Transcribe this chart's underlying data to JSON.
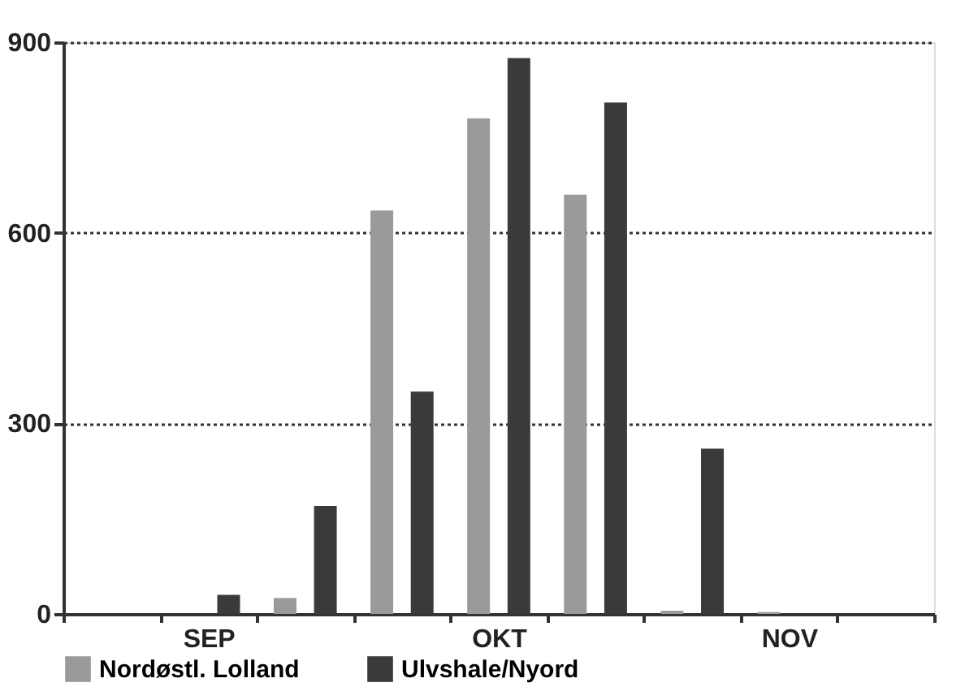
{
  "chart_data": {
    "type": "bar",
    "categories": [
      null,
      "SEP",
      null,
      null,
      "OKT",
      null,
      null,
      "NOV",
      null
    ],
    "series": [
      {
        "name": "Nordøstl. Lolland",
        "color": "#9a9a9a",
        "values": [
          0,
          0,
          25,
          635,
          780,
          660,
          5,
          3,
          0
        ]
      },
      {
        "name": "Ulvshale/Nyord",
        "color": "#3a3a3a",
        "values": [
          0,
          30,
          170,
          350,
          875,
          805,
          260,
          0,
          0
        ]
      }
    ],
    "ylim": [
      0,
      900
    ],
    "yticks": [
      0,
      300,
      600,
      900
    ],
    "grid": "y",
    "legend": "bottom"
  }
}
